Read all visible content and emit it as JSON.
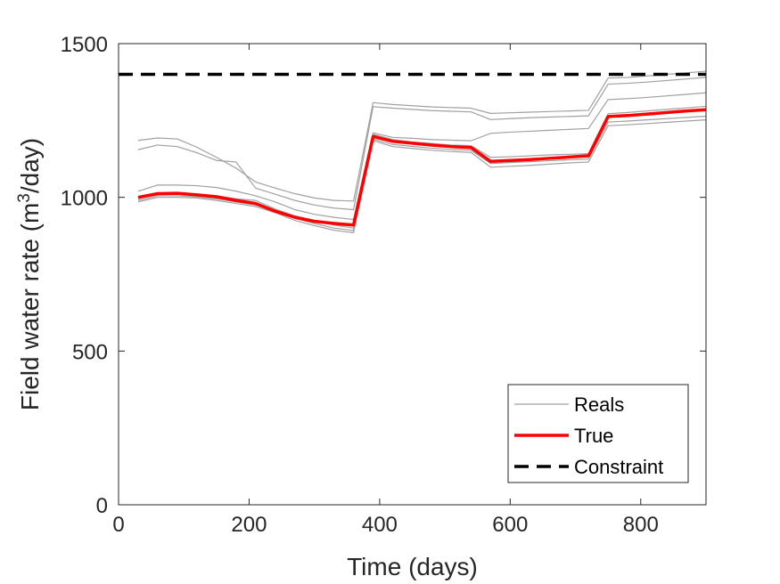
{
  "chart_data": {
    "type": "line",
    "xlabel": "Time (days)",
    "ylabel_parts": {
      "pre": "Field water rate (m",
      "sup": "3",
      "post": "/day)"
    },
    "xlim": [
      0,
      900
    ],
    "ylim": [
      0,
      1500
    ],
    "xticks": [
      0,
      200,
      400,
      600,
      800
    ],
    "yticks": [
      0,
      500,
      1000,
      1500
    ],
    "xtick_labels": [
      "0",
      "200",
      "400",
      "600",
      "800"
    ],
    "ytick_labels": [
      "0",
      "500",
      "1000",
      "1500"
    ],
    "grid": false,
    "legend_position": "bottom-right",
    "colors": {
      "reals": "#a0a0a0",
      "true": "#ff0000",
      "constraint": "#000000",
      "axes": "#262626"
    },
    "x": [
      30,
      60,
      90,
      120,
      150,
      180,
      210,
      240,
      270,
      300,
      330,
      360,
      390,
      420,
      450,
      480,
      510,
      540,
      570,
      600,
      630,
      660,
      690,
      720,
      750,
      780,
      810,
      840,
      870,
      900
    ],
    "series": [
      {
        "name": "Reals",
        "role": "reals",
        "legend": true,
        "values": [
          1185,
          1193,
          1190,
          1163,
          1130,
          1095,
          1050,
          1030,
          1012,
          998,
          990,
          988,
          1308,
          1302,
          1298,
          1294,
          1292,
          1290,
          1273,
          1275,
          1277,
          1279,
          1281,
          1283,
          1388,
          1390,
          1395,
          1400,
          1405,
          1410
        ]
      },
      {
        "name": "Reals",
        "role": "reals",
        "legend": false,
        "values": [
          1155,
          1170,
          1165,
          1145,
          1120,
          1115,
          1030,
          1010,
          990,
          975,
          965,
          960,
          1295,
          1290,
          1286,
          1282,
          1280,
          1278,
          1253,
          1256,
          1259,
          1261,
          1263,
          1265,
          1368,
          1371,
          1375,
          1380,
          1385,
          1390
        ]
      },
      {
        "name": "Reals",
        "role": "reals",
        "legend": false,
        "values": [
          1020,
          1040,
          1040,
          1038,
          1032,
          1020,
          1005,
          985,
          960,
          945,
          935,
          928,
          1210,
          1195,
          1192,
          1188,
          1186,
          1184,
          1208,
          1212,
          1215,
          1218,
          1221,
          1224,
          1318,
          1321,
          1325,
          1330,
          1335,
          1340
        ]
      },
      {
        "name": "Reals",
        "role": "reals",
        "legend": false,
        "values": [
          995,
          1010,
          1012,
          1010,
          1005,
          995,
          990,
          962,
          940,
          925,
          910,
          900,
          1205,
          1188,
          1180,
          1175,
          1170,
          1168,
          1130,
          1132,
          1135,
          1138,
          1140,
          1142,
          1272,
          1276,
          1281,
          1286,
          1291,
          1296
        ]
      },
      {
        "name": "Reals",
        "role": "reals",
        "legend": false,
        "values": [
          990,
          1005,
          1005,
          1002,
          995,
          985,
          975,
          955,
          932,
          915,
          900,
          892,
          1190,
          1172,
          1166,
          1160,
          1156,
          1153,
          1110,
          1113,
          1116,
          1119,
          1122,
          1125,
          1245,
          1248,
          1252,
          1256,
          1260,
          1264
        ]
      },
      {
        "name": "Reals",
        "role": "reals",
        "legend": false,
        "values": [
          985,
          1000,
          1000,
          998,
          990,
          980,
          970,
          950,
          925,
          908,
          893,
          885,
          1185,
          1165,
          1159,
          1153,
          1149,
          1146,
          1098,
          1101,
          1104,
          1108,
          1112,
          1115,
          1233,
          1236,
          1240,
          1244,
          1248,
          1252
        ]
      },
      {
        "name": "True",
        "role": "true",
        "legend": true,
        "values": [
          1000,
          1012,
          1013,
          1008,
          1002,
          990,
          980,
          955,
          935,
          922,
          915,
          910,
          1198,
          1182,
          1176,
          1170,
          1165,
          1162,
          1117,
          1120,
          1123,
          1127,
          1131,
          1135,
          1263,
          1266,
          1271,
          1276,
          1281,
          1285
        ]
      },
      {
        "name": "Constraint",
        "role": "constraint",
        "legend": true,
        "values": [
          1400,
          1400,
          1400,
          1400,
          1400,
          1400,
          1400,
          1400,
          1400,
          1400,
          1400,
          1400,
          1400,
          1400,
          1400,
          1400,
          1400,
          1400,
          1400,
          1400,
          1400,
          1400,
          1400,
          1400,
          1400,
          1400,
          1400,
          1400,
          1400,
          1400
        ]
      }
    ],
    "constraint_x": [
      0,
      900
    ],
    "legend_entries": [
      "Reals",
      "True",
      "Constraint"
    ]
  }
}
